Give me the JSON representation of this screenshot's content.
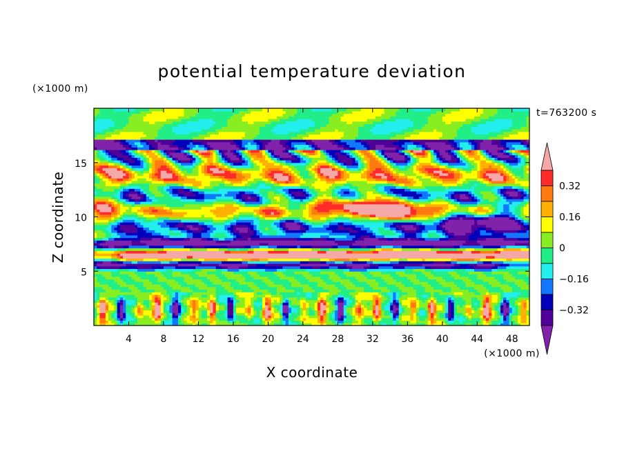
{
  "chart_data": {
    "type": "heatmap",
    "title": "potential temperature deviation",
    "xlabel": "X coordinate",
    "ylabel": "Z coordinate",
    "x_unit": "(×1000 m)",
    "y_unit": "(×1000 m)",
    "time_label": "t=763200 s",
    "xlim": [
      0,
      50
    ],
    "ylim": [
      0,
      20
    ],
    "x_ticks": [
      4,
      8,
      12,
      16,
      20,
      24,
      28,
      32,
      36,
      40,
      44,
      48
    ],
    "x_tick_labels": [
      "4",
      "8",
      "12",
      "16",
      "20",
      "24",
      "28",
      "32",
      "36",
      "40",
      "44",
      "48"
    ],
    "y_ticks": [
      5,
      10,
      15
    ],
    "y_tick_labels": [
      "5",
      "10",
      "15"
    ],
    "colorbar": {
      "levels": [
        -0.4,
        -0.32,
        -0.24,
        -0.16,
        -0.08,
        0,
        0.08,
        0.16,
        0.24,
        0.32,
        0.4
      ],
      "labeled_values": [
        0.32,
        0.16,
        0,
        -0.16,
        -0.32
      ],
      "labels": [
        "0.32",
        "0.16",
        "0",
        "−0.16",
        "−0.32"
      ],
      "colors_high_to_low": [
        "#f4a8a8",
        "#ff2a2a",
        "#ff7a10",
        "#ffb000",
        "#ffff00",
        "#88ee22",
        "#22ee88",
        "#22eeee",
        "#1177ff",
        "#0000bb",
        "#500099",
        "#8022aa"
      ],
      "extend": "both"
    },
    "field_description_bands": [
      {
        "z_range": [
          17,
          20
        ],
        "dominant": [
          0,
          0.16
        ]
      },
      {
        "z_range": [
          7.5,
          17
        ],
        "dominant": [
          -0.4,
          0.4
        ]
      },
      {
        "z_range": [
          5,
          7.5
        ],
        "dominant": [
          -0.4,
          0.4
        ]
      },
      {
        "z_range": [
          3,
          5
        ],
        "dominant": [
          -0.08,
          0.08
        ]
      },
      {
        "z_range": [
          0,
          3
        ],
        "dominant": [
          -0.24,
          0.24
        ]
      }
    ]
  }
}
